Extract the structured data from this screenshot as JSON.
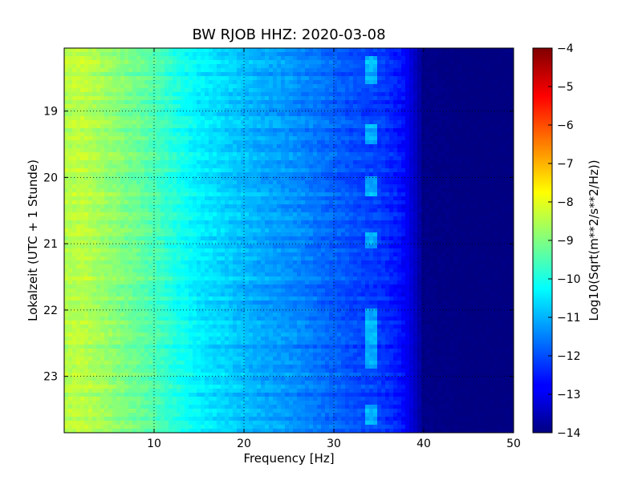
{
  "chart_data": {
    "type": "heatmap",
    "title": "BW RJOB HHZ: 2020-03-08",
    "xlabel": "Frequency [Hz]",
    "ylabel": "Lokalzeit (UTC + 1 Stunde)",
    "xlim": [
      0,
      50
    ],
    "ylim": [
      18.05,
      23.85
    ],
    "y_inverted": true,
    "x_ticks": [
      10,
      20,
      30,
      40,
      50
    ],
    "y_ticks": [
      19,
      20,
      21,
      22,
      23
    ],
    "grid": true,
    "colormap": "jet",
    "colorbar": {
      "label": "Log10(Sqrt(m**2/s**2/Hz))",
      "range": [
        -14,
        -4
      ],
      "ticks": [
        -4,
        -5,
        -6,
        -7,
        -8,
        -9,
        -10,
        -11,
        -12,
        -13,
        -14
      ]
    },
    "psd_profile": {
      "frequency": [
        0,
        2,
        5,
        8,
        10,
        12,
        15,
        18,
        20,
        22,
        25,
        28,
        30,
        32,
        35,
        37,
        38,
        39,
        40,
        45,
        50
      ],
      "level": [
        -8.5,
        -8.4,
        -8.8,
        -9.2,
        -9.5,
        -9.9,
        -10.4,
        -10.7,
        -10.9,
        -11.1,
        -11.3,
        -11.6,
        -11.8,
        -12.0,
        -12.2,
        -12.5,
        -12.8,
        -13.3,
        -13.9,
        -14,
        -14
      ]
    },
    "features": [
      {
        "description": "narrow spectral line",
        "frequency": 34.2,
        "time_ranges": [
          [
            18.2,
            18.6
          ],
          [
            19.2,
            19.5
          ],
          [
            20.0,
            20.3
          ],
          [
            20.8,
            21.1
          ],
          [
            22.0,
            22.9
          ],
          [
            23.4,
            23.7
          ]
        ]
      }
    ]
  }
}
